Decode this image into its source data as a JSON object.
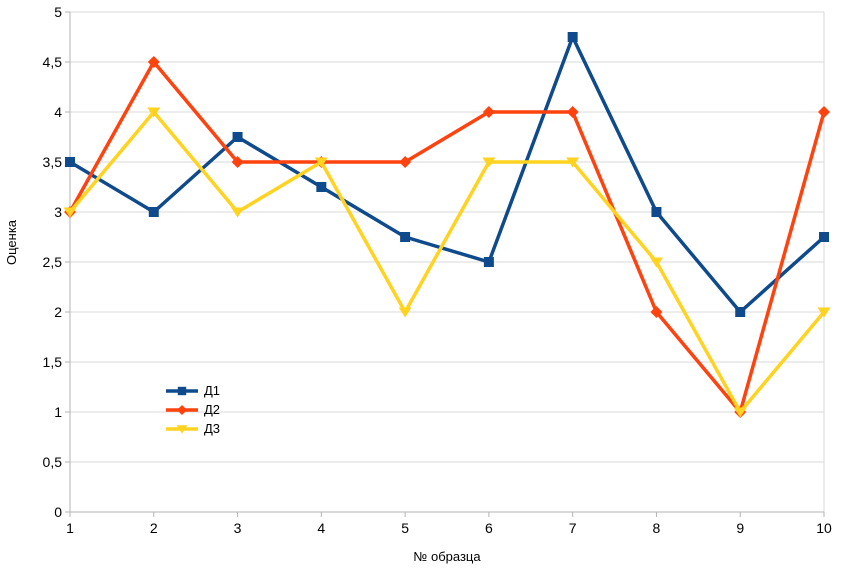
{
  "chart_data": {
    "type": "line",
    "title": "",
    "xlabel": "№ образца",
    "ylabel": "Оценка",
    "x": [
      1,
      2,
      3,
      4,
      5,
      6,
      7,
      8,
      9,
      10
    ],
    "x_tick_labels": [
      "1",
      "2",
      "3",
      "4",
      "5",
      "6",
      "7",
      "8",
      "9",
      "10"
    ],
    "ylim": [
      0,
      5
    ],
    "y_tick_step": 0.5,
    "y_tick_labels": [
      "0",
      "0,5",
      "1",
      "1,5",
      "2",
      "2,5",
      "3",
      "3,5",
      "4",
      "4,5",
      "5"
    ],
    "grid": "horizontal",
    "legend_position": "inside-left-middle",
    "series": [
      {
        "name": "Д1",
        "marker": "square",
        "color": "#0f4b8c",
        "values": [
          3.5,
          3,
          3.75,
          3.25,
          2.75,
          2.5,
          4.75,
          3,
          2,
          2.75
        ]
      },
      {
        "name": "Д2",
        "marker": "diamond",
        "color": "#ff420e",
        "values": [
          3,
          4.5,
          3.5,
          3.5,
          3.5,
          4,
          4,
          2,
          1,
          4
        ]
      },
      {
        "name": "Д3",
        "marker": "triangle-down",
        "color": "#ffd320",
        "values": [
          3,
          4,
          3,
          3.5,
          2,
          3.5,
          3.5,
          2.5,
          1,
          2
        ]
      }
    ]
  },
  "colors": {
    "background": "#ffffff",
    "gridline": "#d9d9d9",
    "axis": "#b3b3b3",
    "text": "#000000"
  }
}
